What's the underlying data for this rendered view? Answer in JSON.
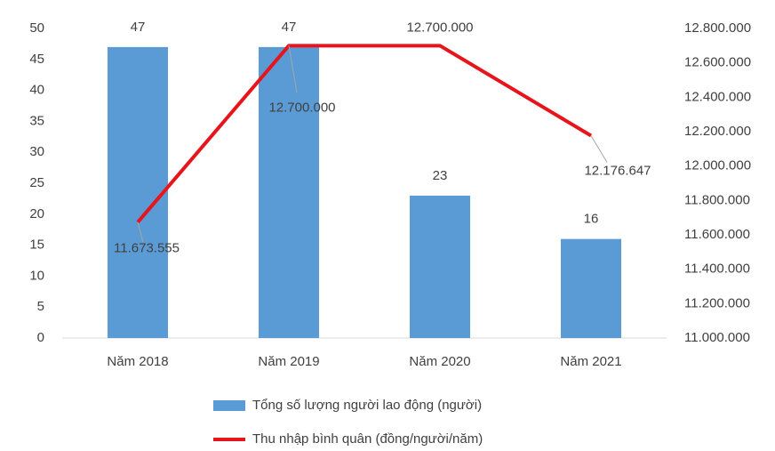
{
  "chart_data": {
    "type": "bar",
    "categories": [
      "Năm 2018",
      "Năm 2019",
      "Năm 2020",
      "Năm 2021"
    ],
    "series": [
      {
        "name": "Tổng số lượng người lao động (người)",
        "type": "bar",
        "color": "#5b9bd5",
        "values": [
          47,
          47,
          23,
          16
        ]
      },
      {
        "name": "Thu nhập bình quân  (đồng/người/năm)",
        "type": "line",
        "axis": "y2",
        "color": "#e8141b",
        "values": [
          11673555,
          12700000,
          12700000,
          12176647
        ],
        "value_labels": [
          "11.673.555",
          "12.700.000",
          "12.700.000",
          "12.176.647"
        ]
      }
    ],
    "ylim": [
      0,
      50
    ],
    "yticks": [
      0,
      5,
      10,
      15,
      20,
      25,
      30,
      35,
      40,
      45,
      50
    ],
    "y2lim": [
      11000000,
      12800000
    ],
    "y2ticks": [
      {
        "value": 11000000,
        "label": "11.000.000"
      },
      {
        "value": 11200000,
        "label": "11.200.000"
      },
      {
        "value": 11400000,
        "label": "11.400.000"
      },
      {
        "value": 11600000,
        "label": "11.600.000"
      },
      {
        "value": 11800000,
        "label": "11.800.000"
      },
      {
        "value": 12000000,
        "label": "12.000.000"
      },
      {
        "value": 12200000,
        "label": "12.200.000"
      },
      {
        "value": 12400000,
        "label": "12.400.000"
      },
      {
        "value": 12600000,
        "label": "12.600.000"
      },
      {
        "value": 12800000,
        "label": "12.800.000"
      }
    ],
    "grid": false,
    "legend": "bottom"
  }
}
